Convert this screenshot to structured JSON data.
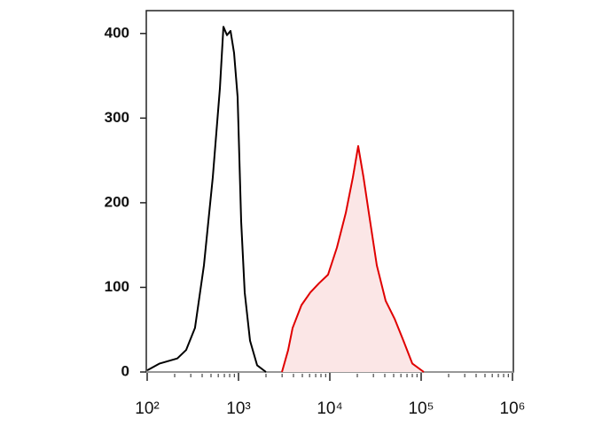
{
  "chart_data": {
    "type": "histogram-overlay",
    "log_x": true,
    "xlim": [
      100,
      1000000
    ],
    "xticks": [
      {
        "value": 100,
        "label": "10²"
      },
      {
        "value": 1000,
        "label": "10³"
      },
      {
        "value": 10000,
        "label": "10⁴"
      },
      {
        "value": 100000,
        "label": "10⁵"
      },
      {
        "value": 1000000,
        "label": "10⁶"
      }
    ],
    "ylim": [
      0,
      427
    ],
    "yticks": [
      0,
      100,
      200,
      300,
      400
    ],
    "series": [
      {
        "color": "#000000",
        "filled": false,
        "x": [
          100,
          137,
          214,
          267,
          334,
          418,
          523,
          625,
          684,
          748,
          818,
          894,
          978,
          1069,
          1169,
          1337,
          1600,
          2000
        ],
        "values": [
          2,
          10,
          16,
          26,
          52,
          126,
          230,
          335,
          408,
          398,
          403,
          377,
          325,
          178,
          94,
          37,
          8,
          0
        ]
      },
      {
        "color": "#e00000",
        "filled": true,
        "fill": "#fbe6e6",
        "x": [
          2990,
          3497,
          3908,
          4887,
          6109,
          7638,
          9570,
          11960,
          14960,
          17870,
          20460,
          23390,
          26740,
          32730,
          40930,
          51170,
          63970,
          79980,
          106900
        ],
        "values": [
          0,
          26,
          52,
          79,
          94,
          105,
          115,
          147,
          188,
          230,
          267,
          230,
          188,
          126,
          84,
          63,
          37,
          10,
          0
        ]
      }
    ]
  }
}
